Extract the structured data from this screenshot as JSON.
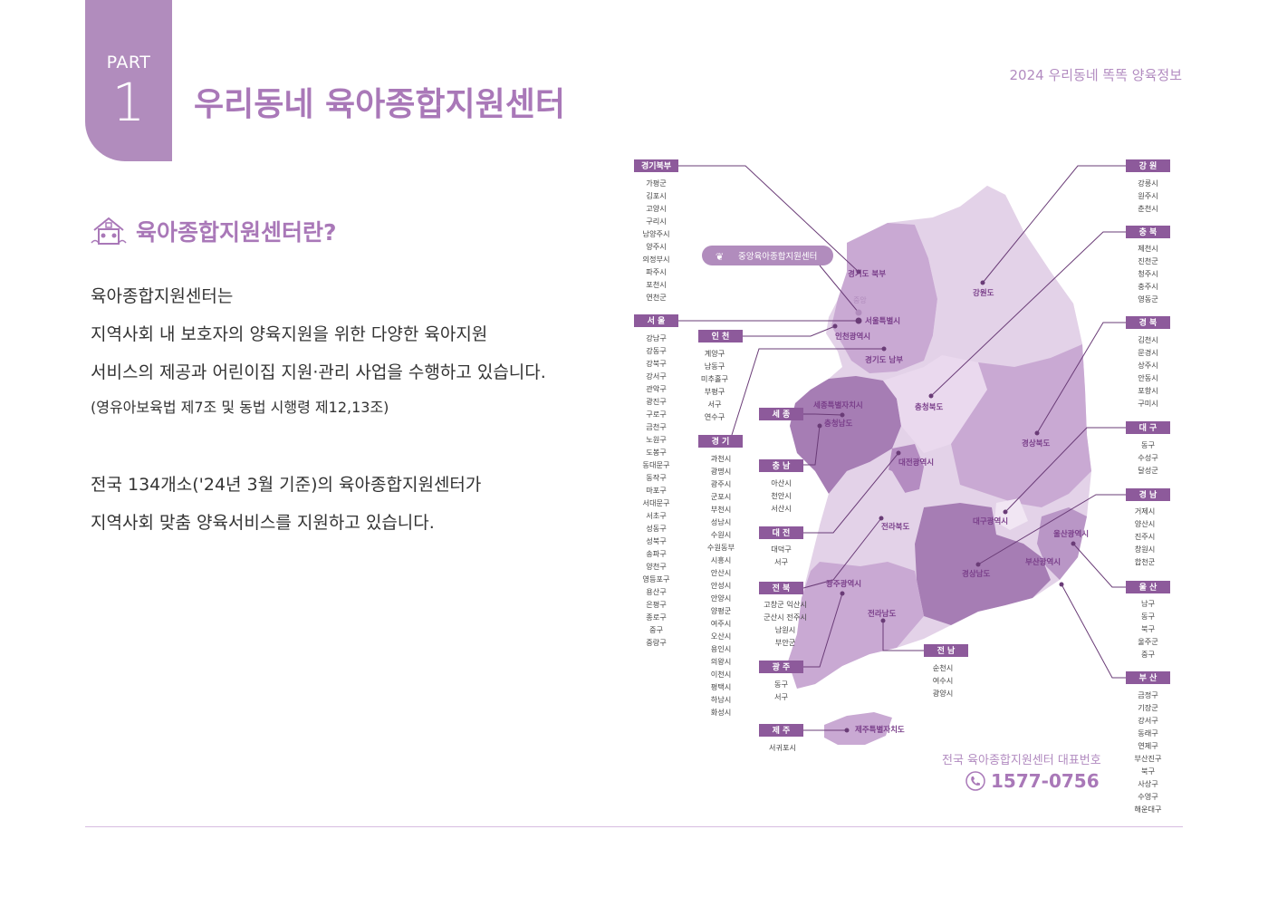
{
  "header": {
    "part_label": "PART",
    "part_number": "1",
    "title": "우리동네 육아종합지원센터",
    "publication": "2024 우리동네 똑똑 양육정보"
  },
  "section": {
    "subtitle": "육아종합지원센터란?",
    "icon": "house-kids-icon",
    "paragraph1": [
      "육아종합지원센터는",
      "지역사회 내 보호자의 양육지원을 위한 다양한 육아지원",
      "서비스의 제공과 어린이집 지원·관리 사업을 수행하고 있습니다."
    ],
    "legal_note": "(영유아보육법 제7조 및 동법 시행령 제12,13조)",
    "paragraph2": [
      "전국 134개소('24년 3월 기준)의 육아종합지원센터가",
      "지역사회 맞춤 양육서비스를 지원하고 있습니다."
    ]
  },
  "map": {
    "central_center": "중앙육아종합지원센터",
    "central_short": "중앙",
    "region_labels": {
      "gyeonggi_north": "경기도 북부",
      "seoul": "서울특별시",
      "incheon": "인천광역시",
      "gyeonggi_south": "경기도 남부",
      "gangwon": "강원도",
      "sejong": "세종특별자치시",
      "chungnam": "충청남도",
      "chungbuk": "충청북도",
      "daejeon": "대전광역시",
      "gyeongbuk": "경상북도",
      "jeonbuk": "전라북도",
      "daegu": "대구광역시",
      "ulsan": "울산광역시",
      "gyeongnam": "경상남도",
      "busan": "부산광역시",
      "gwangju": "광주광역시",
      "jeonnam": "전라남도",
      "jeju": "제주특별자치도"
    },
    "lists": {
      "gyeonggi_north": {
        "title": "경기북부",
        "items": [
          "가평군",
          "김포시",
          "고양시",
          "구리시",
          "남양주시",
          "양주시",
          "의정부시",
          "파주시",
          "포천시",
          "연천군"
        ]
      },
      "seoul": {
        "title": "서 울",
        "items": [
          "강남구",
          "강동구",
          "강북구",
          "강서구",
          "관악구",
          "광진구",
          "구로구",
          "금천구",
          "노원구",
          "도봉구",
          "동대문구",
          "동작구",
          "마포구",
          "서대문구",
          "서초구",
          "성동구",
          "성북구",
          "송파구",
          "양천구",
          "영등포구",
          "용산구",
          "은평구",
          "종로구",
          "중구",
          "중랑구"
        ]
      },
      "incheon": {
        "title": "인 천",
        "items": [
          "계양구",
          "남동구",
          "미추홀구",
          "부평구",
          "서구",
          "연수구"
        ]
      },
      "gyeonggi": {
        "title": "경 기",
        "items": [
          "과천시",
          "광명시",
          "광주시",
          "군포시",
          "부천시",
          "성남시",
          "수원시",
          "수원동부",
          "시흥시",
          "안산시",
          "안성시",
          "안양시",
          "양평군",
          "여주시",
          "오산시",
          "용인시",
          "의왕시",
          "이천시",
          "평택시",
          "하남시",
          "화성시"
        ]
      },
      "sejong": {
        "title": "세 종",
        "items": []
      },
      "chungnam": {
        "title": "충 남",
        "items": [
          "아산시",
          "천안시",
          "서산시"
        ]
      },
      "daejeon": {
        "title": "대 전",
        "items": [
          "대덕구",
          "서구"
        ]
      },
      "jeonbuk": {
        "title": "전 북",
        "items": [
          "고창군  익산시",
          "군산시  전주시",
          "남원시",
          "부안군"
        ]
      },
      "gwangju": {
        "title": "광 주",
        "items": [
          "동구",
          "서구"
        ]
      },
      "jeju": {
        "title": "제 주",
        "items": [
          "서귀포시"
        ]
      },
      "jeonnam": {
        "title": "전 남",
        "items": [
          "순천시",
          "여수시",
          "광양시"
        ]
      },
      "gangwon": {
        "title": "강 원",
        "items": [
          "강릉시",
          "원주시",
          "춘천시"
        ]
      },
      "chungbuk": {
        "title": "충 북",
        "items": [
          "제천시",
          "진천군",
          "청주시",
          "충주시",
          "영동군"
        ]
      },
      "gyeongbuk": {
        "title": "경 북",
        "items": [
          "김천시",
          "문경시",
          "상주시",
          "안동시",
          "포항시",
          "구미시"
        ]
      },
      "daegu": {
        "title": "대 구",
        "items": [
          "동구",
          "수성구",
          "달성군"
        ]
      },
      "gyeongnam": {
        "title": "경 남",
        "items": [
          "거제시",
          "양산시",
          "진주시",
          "창원시",
          "합천군"
        ]
      },
      "ulsan": {
        "title": "울 산",
        "items": [
          "남구",
          "동구",
          "북구",
          "울주군",
          "중구"
        ]
      },
      "busan": {
        "title": "부 산",
        "items": [
          "금정구",
          "기장군",
          "강서구",
          "동래구",
          "연제구",
          "부산진구",
          "북구",
          "사상구",
          "수영구",
          "해운대구"
        ]
      }
    },
    "phone_caption": "전국 육아종합지원센터 대표번호",
    "phone_number": "1577-0756",
    "phone_icon": "phone-icon"
  },
  "colors": {
    "accent": "#a978b8",
    "tab": "#b18cbd",
    "label_box": "#8d5a9b",
    "region_dark": "#a67db4",
    "region_mid": "#c9a9d3",
    "region_light": "#e3d2e8"
  }
}
